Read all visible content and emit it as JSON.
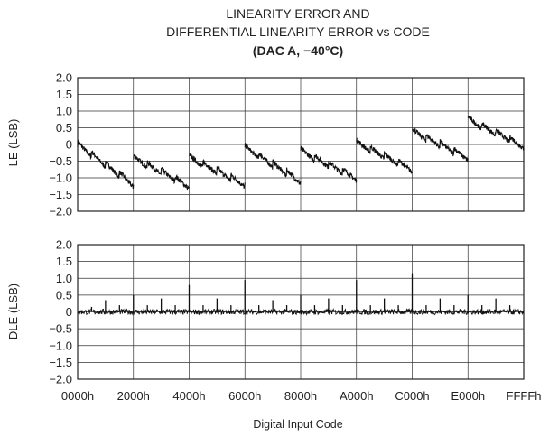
{
  "chart_data": [
    {
      "type": "line",
      "title_lines": [
        "LINEARITY ERROR AND",
        "DIFFERENTIAL LINEARITY ERROR vs CODE",
        "(DAC A, −40°C)"
      ],
      "ylabel": "LE (LSB)",
      "xlabel": "",
      "ylim": [
        -2.0,
        2.0
      ],
      "y_ticks": [
        "2.0",
        "1.5",
        "1.0",
        "0.5",
        "0",
        "−0.5",
        "−1.0",
        "−1.5",
        "−2.0"
      ],
      "x_ticks": [
        "0000h",
        "2000h",
        "4000h",
        "6000h",
        "8000h",
        "A000h",
        "C000h",
        "E000h",
        "FFFFh"
      ],
      "grid": true,
      "segments": [
        {
          "x_start": 0,
          "x_end": 8192,
          "y_start": 0.0,
          "y_end": -1.2
        },
        {
          "x_start": 8192,
          "x_end": 16384,
          "y_start": -0.4,
          "y_end": -1.25
        },
        {
          "x_start": 16384,
          "x_end": 24576,
          "y_start": -0.4,
          "y_end": -1.2
        },
        {
          "x_start": 24576,
          "x_end": 32768,
          "y_start": -0.1,
          "y_end": -1.1
        },
        {
          "x_start": 32768,
          "x_end": 40960,
          "y_start": -0.2,
          "y_end": -1.0
        },
        {
          "x_start": 40960,
          "x_end": 49152,
          "y_start": 0.05,
          "y_end": -0.75
        },
        {
          "x_start": 49152,
          "x_end": 57344,
          "y_start": 0.4,
          "y_end": -0.4
        },
        {
          "x_start": 57344,
          "x_end": 65535,
          "y_start": 0.75,
          "y_end": -0.05
        }
      ]
    },
    {
      "type": "line",
      "ylabel": "DLE (LSB)",
      "xlabel": "Digital Input Code",
      "ylim": [
        -2.0,
        2.0
      ],
      "y_ticks": [
        "2.0",
        "1.5",
        "1.0",
        "0.5",
        "0",
        "−0.5",
        "−1.0",
        "−1.5",
        "−2.0"
      ],
      "x_ticks": [
        "0000h",
        "2000h",
        "4000h",
        "6000h",
        "8000h",
        "A000h",
        "C000h",
        "E000h",
        "FFFFh"
      ],
      "grid": true,
      "baseline": 0.0,
      "spikes": [
        {
          "x": 2048,
          "y": 0.15
        },
        {
          "x": 4096,
          "y": 0.35
        },
        {
          "x": 6144,
          "y": 0.2
        },
        {
          "x": 8192,
          "y": 0.5
        },
        {
          "x": 10240,
          "y": 0.2
        },
        {
          "x": 12288,
          "y": 0.4
        },
        {
          "x": 14336,
          "y": 0.2
        },
        {
          "x": 16384,
          "y": 0.8
        },
        {
          "x": 18432,
          "y": 0.2
        },
        {
          "x": 20480,
          "y": 0.4
        },
        {
          "x": 22528,
          "y": 0.2
        },
        {
          "x": 24576,
          "y": 0.95
        },
        {
          "x": 26624,
          "y": 0.2
        },
        {
          "x": 28672,
          "y": 0.35
        },
        {
          "x": 30720,
          "y": 0.2
        },
        {
          "x": 32768,
          "y": 0.5
        },
        {
          "x": 34816,
          "y": 0.2
        },
        {
          "x": 36864,
          "y": 0.4
        },
        {
          "x": 38912,
          "y": 0.2
        },
        {
          "x": 40960,
          "y": 0.95
        },
        {
          "x": 43008,
          "y": 0.2
        },
        {
          "x": 45056,
          "y": 0.4
        },
        {
          "x": 47104,
          "y": 0.2
        },
        {
          "x": 49152,
          "y": 1.15
        },
        {
          "x": 51200,
          "y": 0.2
        },
        {
          "x": 53248,
          "y": 0.4
        },
        {
          "x": 55296,
          "y": 0.2
        },
        {
          "x": 57344,
          "y": 0.5
        },
        {
          "x": 59392,
          "y": 0.2
        },
        {
          "x": 61440,
          "y": 0.4
        },
        {
          "x": 63488,
          "y": 0.2
        }
      ]
    }
  ]
}
